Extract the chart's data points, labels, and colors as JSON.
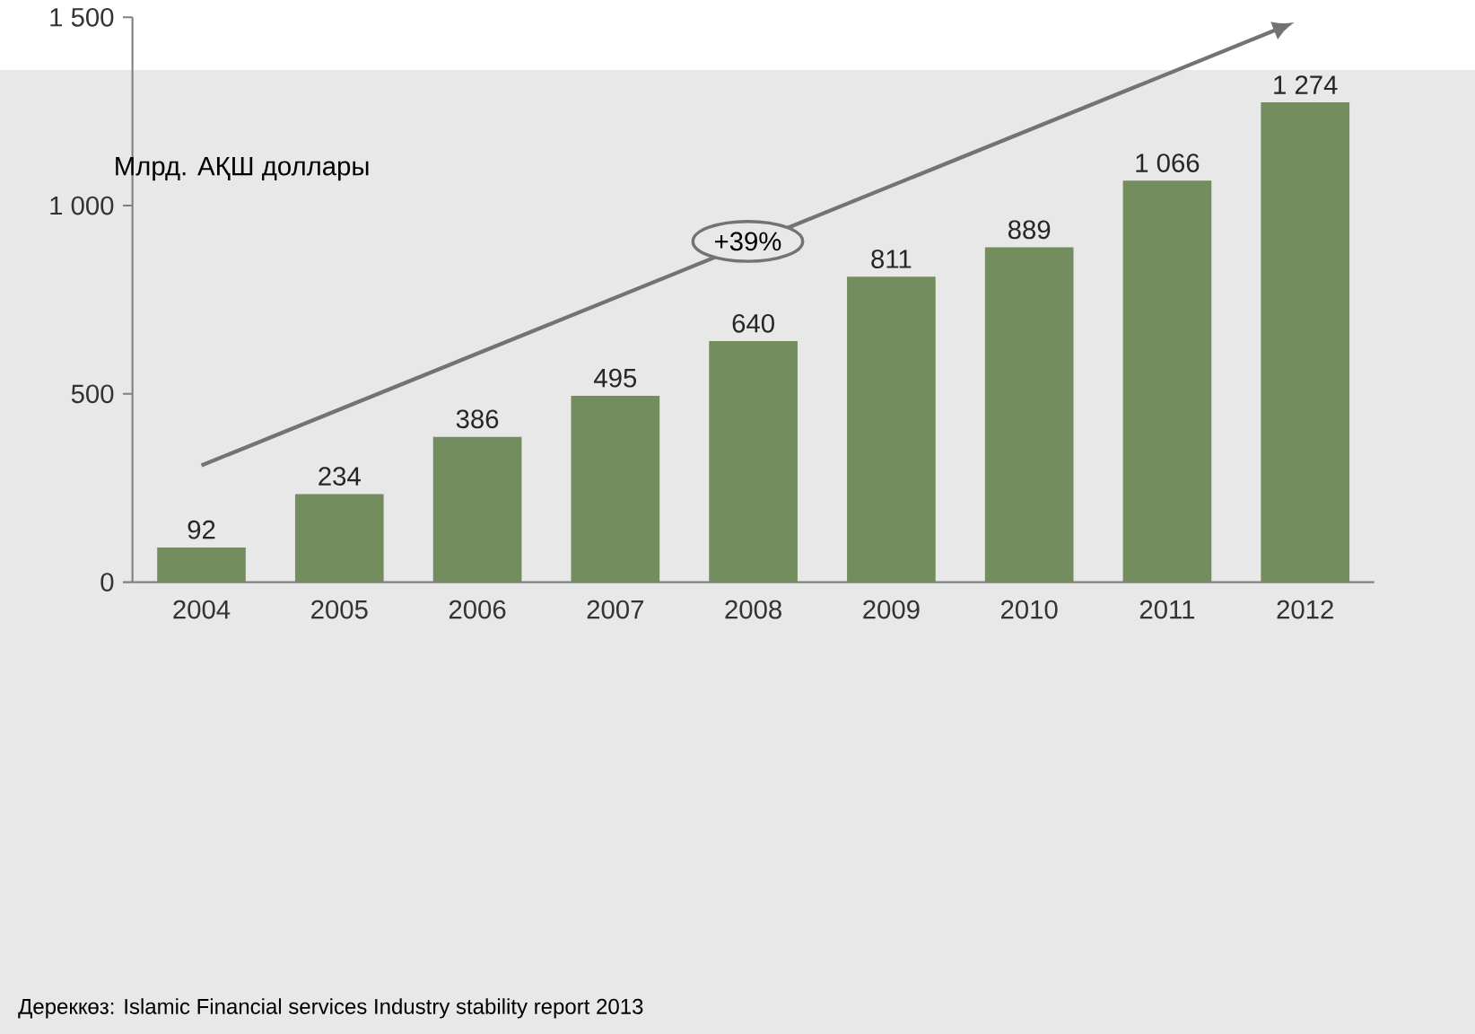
{
  "chart_data": {
    "type": "bar",
    "ylabel": "Млрд. АҚШ доллары",
    "categories": [
      "2004",
      "2005",
      "2006",
      "2007",
      "2008",
      "2009",
      "2010",
      "2011",
      "2012"
    ],
    "values": [
      92,
      234,
      386,
      495,
      640,
      811,
      889,
      1066,
      1274
    ],
    "value_labels": [
      "92",
      "234",
      "386",
      "495",
      "640",
      "811",
      "889",
      "1 066",
      "1 274"
    ],
    "color": "#738d5e",
    "ylim": [
      0,
      1500
    ],
    "yticks": [
      0,
      500,
      {
        "value": 1000,
        "label": "1 000"
      },
      {
        "value": 1500,
        "label": "1 500"
      }
    ],
    "grid": false,
    "annotations": [
      "+39%",
      "Дереккөз:     Islamic Financial services Industry stability report 2013"
    ]
  }
}
